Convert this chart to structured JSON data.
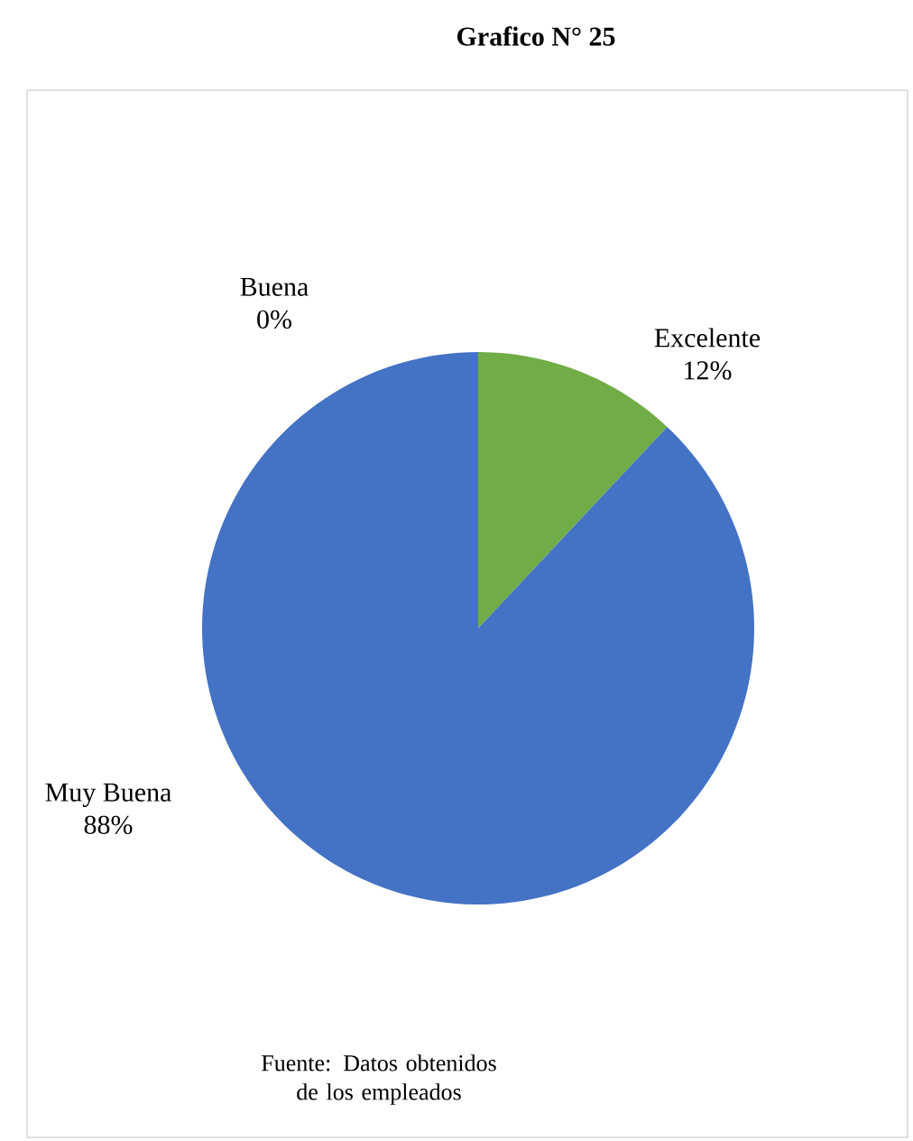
{
  "chart_data": {
    "type": "pie",
    "title": "Grafico N° 25",
    "categories": [
      "Excelente",
      "Muy Buena",
      "Buena"
    ],
    "values": [
      12,
      88,
      0
    ],
    "colors": [
      "#70ad47",
      "#4472c4",
      "#ed7d31"
    ],
    "value_labels": [
      "12%",
      "88%",
      "0%"
    ],
    "annotations": [
      "Fuente: Datos obtenidos de los empleados"
    ]
  }
}
